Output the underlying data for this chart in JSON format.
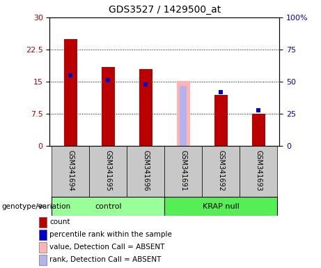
{
  "title": "GDS3527 / 1429500_at",
  "samples": [
    "GSM341694",
    "GSM341695",
    "GSM341696",
    "GSM341691",
    "GSM341692",
    "GSM341693"
  ],
  "red_bars": [
    25.0,
    18.5,
    18.0,
    null,
    12.0,
    7.5
  ],
  "blue_squares_pct": [
    55,
    51,
    48,
    null,
    42,
    28
  ],
  "pink_bars": [
    null,
    null,
    null,
    15.2,
    null,
    null
  ],
  "light_blue_bars": [
    null,
    null,
    null,
    14.0,
    null,
    null
  ],
  "absent_mask": [
    false,
    false,
    false,
    true,
    false,
    false
  ],
  "control_indices": [
    0,
    1,
    2
  ],
  "krap_indices": [
    3,
    4,
    5
  ],
  "ylim_left": [
    0,
    30
  ],
  "ylim_right": [
    0,
    100
  ],
  "yticks_left": [
    0,
    7.5,
    15,
    22.5,
    30
  ],
  "yticks_right": [
    0,
    25,
    50,
    75,
    100
  ],
  "ytick_labels_left": [
    "0",
    "7.5",
    "15",
    "22.5",
    "30"
  ],
  "ytick_labels_right": [
    "0",
    "25",
    "50",
    "75",
    "100%"
  ],
  "bar_color_red": "#bb0000",
  "bar_color_pink": "#ffb3b3",
  "square_color_blue": "#0000cc",
  "rank_absent_color": "#b3b3ee",
  "control_color": "#99ff99",
  "krap_color": "#55ee55",
  "bg_label": "#c8c8c8",
  "bar_width": 0.35,
  "legend_items": [
    {
      "label": "count",
      "color": "#bb0000"
    },
    {
      "label": "percentile rank within the sample",
      "color": "#0000cc"
    },
    {
      "label": "value, Detection Call = ABSENT",
      "color": "#ffb3b3"
    },
    {
      "label": "rank, Detection Call = ABSENT",
      "color": "#b3b3ee"
    }
  ]
}
